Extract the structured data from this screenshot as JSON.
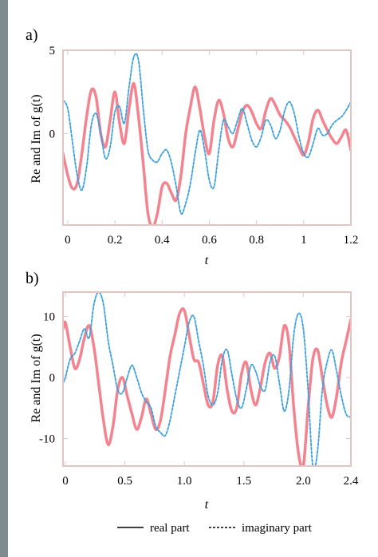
{
  "colors": {
    "real": "#f26d7d",
    "imag": "#3aa0e0",
    "frame": "#e4c3c3",
    "left_bar": "#7f8c8f"
  },
  "legend": {
    "real_label": "real part",
    "imag_label": "imaginary part"
  },
  "chart_data": [
    {
      "panel_label": "a)",
      "type": "line",
      "xlabel": "t",
      "ylabel": "Re and Im of g(t)",
      "xlim": [
        -0.02,
        1.2
      ],
      "ylim": [
        -5.5,
        5
      ],
      "xticks": [
        0,
        0.2,
        0.4,
        0.6,
        0.8,
        1,
        1.2
      ],
      "xtick_labels": [
        "0",
        "0.2",
        "0.4",
        "0.6",
        "0.8",
        "1",
        "1.2"
      ],
      "yticks": [
        5,
        0
      ],
      "ytick_labels": [
        "5",
        "0"
      ],
      "series": [
        {
          "style": "solid",
          "x": [
            -0.02,
            0.0,
            0.02,
            0.04,
            0.06,
            0.08,
            0.1,
            0.12,
            0.14,
            0.16,
            0.18,
            0.2,
            0.22,
            0.24,
            0.26,
            0.28,
            0.3,
            0.32,
            0.34,
            0.36,
            0.38,
            0.4,
            0.42,
            0.44,
            0.46,
            0.48,
            0.5,
            0.52,
            0.54,
            0.56,
            0.58,
            0.6,
            0.62,
            0.64,
            0.66,
            0.68,
            0.7,
            0.72,
            0.74,
            0.76,
            0.78,
            0.8,
            0.82,
            0.84,
            0.86,
            0.88,
            0.9,
            0.92,
            0.94,
            0.96,
            0.98,
            1.0,
            1.02,
            1.04,
            1.06,
            1.08,
            1.1,
            1.12,
            1.14,
            1.16,
            1.18,
            1.2
          ],
          "y": [
            -1.2,
            -2.5,
            -3.3,
            -3.0,
            -1.2,
            1.0,
            2.6,
            2.2,
            0.0,
            -0.8,
            0.8,
            2.5,
            0.6,
            -0.6,
            1.5,
            3.0,
            1.0,
            -1.8,
            -4.8,
            -5.6,
            -4.8,
            -3.2,
            -3.0,
            -3.6,
            -4.0,
            -2.5,
            0.0,
            1.6,
            2.8,
            1.5,
            -0.2,
            -1.2,
            0.8,
            2.0,
            1.2,
            -0.3,
            -0.8,
            0.2,
            1.3,
            1.7,
            1.3,
            0.6,
            0.3,
            1.4,
            2.1,
            1.7,
            1.1,
            0.8,
            0.4,
            -0.2,
            -0.8,
            -1.3,
            -0.5,
            0.9,
            1.4,
            0.8,
            0.2,
            -0.3,
            -0.6,
            -0.2,
            0.2,
            -1.0
          ]
        },
        {
          "style": "dashed",
          "x": [
            -0.02,
            0.0,
            0.02,
            0.04,
            0.06,
            0.08,
            0.1,
            0.12,
            0.14,
            0.16,
            0.18,
            0.2,
            0.22,
            0.24,
            0.26,
            0.28,
            0.3,
            0.32,
            0.34,
            0.36,
            0.38,
            0.4,
            0.42,
            0.44,
            0.46,
            0.48,
            0.5,
            0.52,
            0.54,
            0.56,
            0.58,
            0.6,
            0.62,
            0.64,
            0.66,
            0.68,
            0.7,
            0.72,
            0.74,
            0.76,
            0.78,
            0.8,
            0.82,
            0.84,
            0.86,
            0.88,
            0.9,
            0.92,
            0.94,
            0.96,
            0.98,
            1.0,
            1.02,
            1.04,
            1.06,
            1.08,
            1.1,
            1.12,
            1.14,
            1.16,
            1.18,
            1.2
          ],
          "y": [
            2.0,
            1.5,
            -0.5,
            -2.5,
            -3.4,
            -2.0,
            0.5,
            1.2,
            0.0,
            -1.5,
            -0.8,
            1.3,
            1.6,
            0.6,
            2.8,
            4.6,
            4.4,
            1.5,
            -1.0,
            -1.6,
            -1.7,
            -1.2,
            -1.0,
            -1.8,
            -3.2,
            -4.8,
            -4.2,
            -3.0,
            -1.2,
            0.2,
            -1.0,
            -2.8,
            -3.2,
            -1.0,
            0.8,
            0.4,
            0.0,
            0.8,
            1.5,
            0.6,
            -0.4,
            -0.8,
            -0.2,
            0.8,
            0.5,
            -0.3,
            0.2,
            1.4,
            1.9,
            1.2,
            -0.2,
            -1.2,
            -1.4,
            -0.6,
            0.3,
            -0.1,
            0.0,
            0.5,
            0.8,
            1.0,
            1.4,
            1.9
          ]
        }
      ]
    },
    {
      "panel_label": "b)",
      "type": "line",
      "xlabel": "t",
      "ylabel": "Re and Im of g(t)",
      "xlim": [
        -0.02,
        2.4
      ],
      "ylim": [
        -14.5,
        14
      ],
      "xticks": [
        0,
        0.5,
        1.0,
        1.5,
        2.0,
        2.4
      ],
      "xtick_labels": [
        "0",
        "0.5",
        "1.0",
        "1.5",
        "2.0",
        "2.4"
      ],
      "yticks": [
        10,
        0,
        -10
      ],
      "ytick_labels": [
        "10",
        "0",
        "-10"
      ],
      "series": [
        {
          "style": "solid",
          "x": [
            -0.02,
            0.0,
            0.04,
            0.08,
            0.12,
            0.16,
            0.2,
            0.24,
            0.28,
            0.32,
            0.36,
            0.4,
            0.44,
            0.48,
            0.52,
            0.56,
            0.6,
            0.64,
            0.68,
            0.72,
            0.76,
            0.8,
            0.84,
            0.88,
            0.92,
            0.96,
            1.0,
            1.04,
            1.08,
            1.12,
            1.16,
            1.2,
            1.24,
            1.28,
            1.32,
            1.36,
            1.4,
            1.44,
            1.48,
            1.52,
            1.56,
            1.6,
            1.64,
            1.68,
            1.72,
            1.76,
            1.8,
            1.84,
            1.88,
            1.92,
            1.96,
            2.0,
            2.04,
            2.08,
            2.12,
            2.16,
            2.2,
            2.24,
            2.28,
            2.32,
            2.36,
            2.4
          ],
          "y": [
            8.0,
            9.0,
            5.0,
            1.5,
            3.0,
            6.5,
            8.5,
            5.0,
            -1.0,
            -7.0,
            -11.0,
            -8.0,
            -2.0,
            0.0,
            -3.0,
            -6.0,
            -8.5,
            -6.5,
            -3.5,
            -6.0,
            -8.5,
            -7.0,
            -2.0,
            3.5,
            7.0,
            10.5,
            11.0,
            7.0,
            3.0,
            2.5,
            -1.0,
            -4.5,
            -4.0,
            2.0,
            3.5,
            -2.0,
            -5.5,
            -5.0,
            0.5,
            2.5,
            -2.0,
            -4.5,
            -1.5,
            2.5,
            4.0,
            1.5,
            3.5,
            8.5,
            5.5,
            -5.0,
            -12.5,
            -14.5,
            -5.0,
            3.0,
            4.5,
            0.0,
            -4.5,
            -6.5,
            -3.0,
            2.5,
            6.0,
            9.5
          ]
        },
        {
          "style": "dashed",
          "x": [
            -0.02,
            0.0,
            0.04,
            0.08,
            0.12,
            0.16,
            0.2,
            0.24,
            0.28,
            0.32,
            0.36,
            0.4,
            0.44,
            0.48,
            0.52,
            0.56,
            0.6,
            0.64,
            0.68,
            0.72,
            0.76,
            0.8,
            0.84,
            0.88,
            0.92,
            0.96,
            1.0,
            1.04,
            1.08,
            1.12,
            1.16,
            1.2,
            1.24,
            1.28,
            1.32,
            1.36,
            1.4,
            1.44,
            1.48,
            1.52,
            1.56,
            1.6,
            1.64,
            1.68,
            1.72,
            1.76,
            1.8,
            1.84,
            1.88,
            1.92,
            1.96,
            2.0,
            2.04,
            2.08,
            2.12,
            2.16,
            2.2,
            2.24,
            2.28,
            2.32,
            2.36,
            2.4
          ],
          "y": [
            -1.0,
            0.0,
            3.0,
            4.0,
            6.0,
            8.0,
            6.5,
            12.0,
            14.0,
            12.0,
            6.0,
            2.0,
            -2.0,
            -2.5,
            0.0,
            2.0,
            0.0,
            -2.5,
            -4.0,
            -5.0,
            -8.0,
            -9.0,
            -9.5,
            -7.0,
            -3.0,
            1.0,
            5.0,
            9.0,
            10.0,
            6.0,
            2.0,
            -3.0,
            -4.5,
            -2.5,
            3.0,
            4.5,
            0.5,
            -3.5,
            -5.0,
            -2.0,
            2.0,
            1.0,
            -1.5,
            -2.0,
            2.5,
            3.5,
            -1.0,
            -5.5,
            -2.0,
            7.0,
            10.5,
            8.0,
            -2.0,
            -14.5,
            -12.0,
            -2.0,
            2.5,
            4.5,
            1.0,
            -3.0,
            -6.0,
            -6.5
          ]
        }
      ]
    }
  ]
}
